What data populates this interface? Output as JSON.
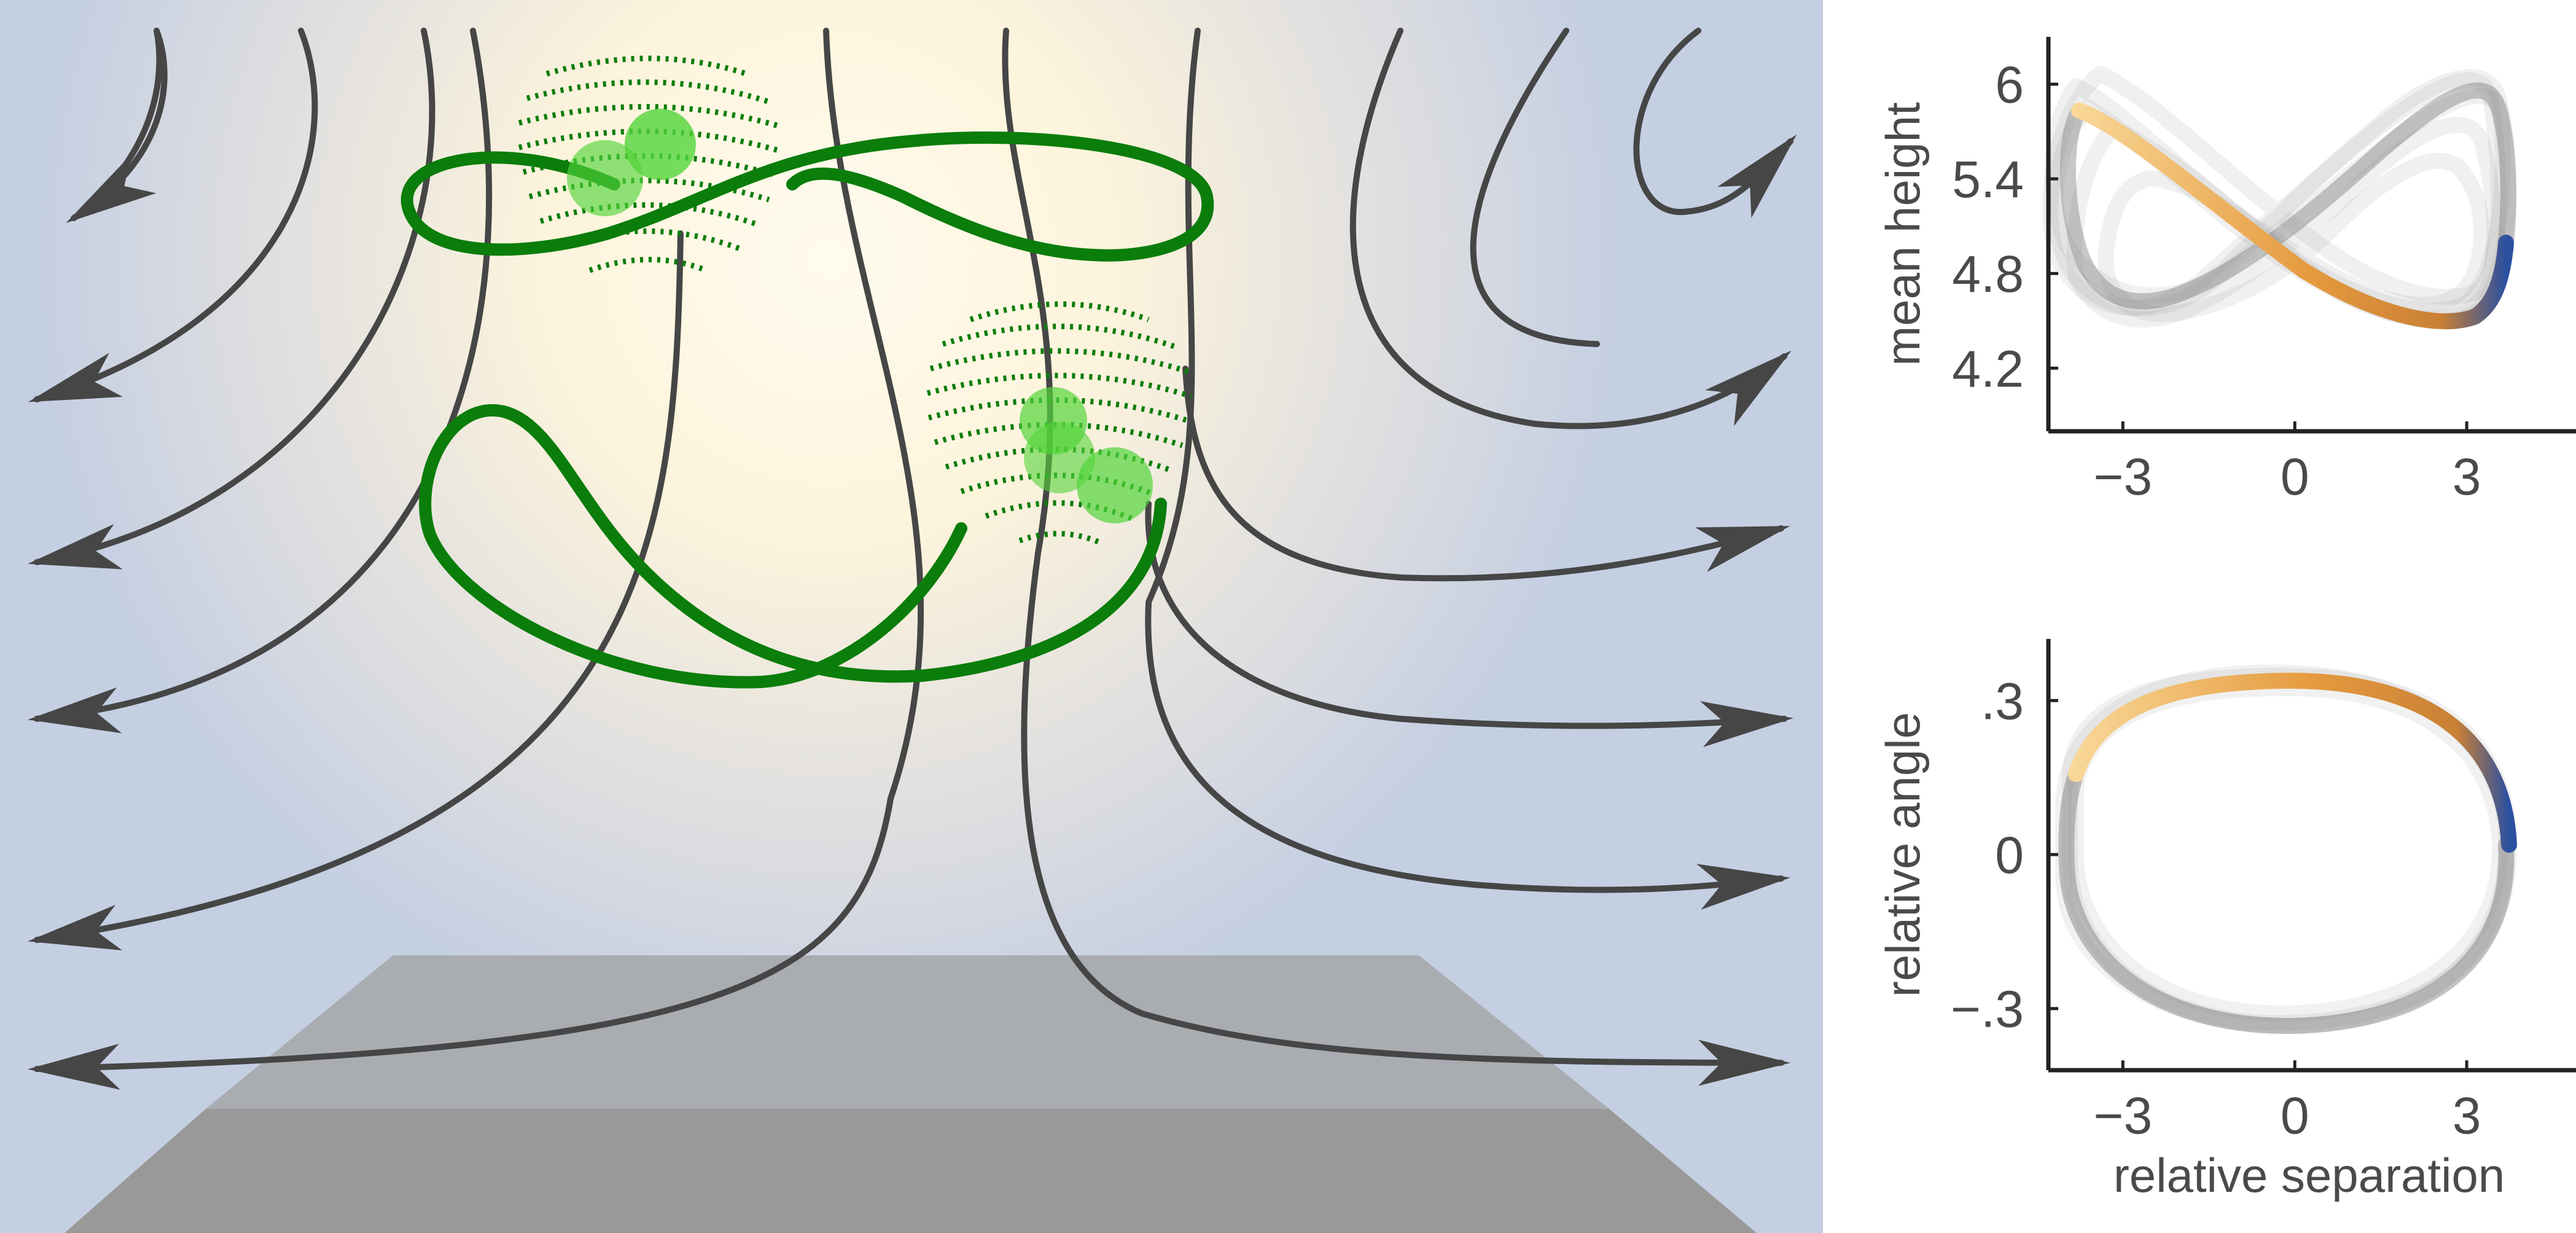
{
  "scene": {
    "flow_color": "#464646",
    "swimmer_color": "#0a7d0a",
    "background_color": "#c4cfe2",
    "glow_color": "#fdf6e2",
    "floor_color": "#9e9e9e"
  },
  "chart_data": [
    {
      "type": "line",
      "ylabel": "mean height",
      "xlabel": "",
      "xlim": [
        -4.3,
        4.8
      ],
      "ylim": [
        3.8,
        6.3
      ],
      "x_ticks": [
        "−3",
        "0",
        "3"
      ],
      "y_ticks": [
        "6",
        "5.4",
        "4.8",
        "4.2"
      ],
      "trajectory_color_start": "#f8d48a",
      "trajectory_color_mid": "#e08b2c",
      "trajectory_color_end": "#2b50a0"
    },
    {
      "type": "line",
      "ylabel": "relative angle",
      "xlabel": "relative separation",
      "xlim": [
        -4.3,
        4.8
      ],
      "ylim": [
        -0.42,
        0.42
      ],
      "x_ticks": [
        "−3",
        "0",
        "3"
      ],
      "y_ticks": [
        ".3",
        "0",
        "−.3"
      ],
      "trajectory_color_start": "#f8d48a",
      "trajectory_color_mid": "#e08b2c",
      "trajectory_color_end": "#2b50a0"
    }
  ]
}
